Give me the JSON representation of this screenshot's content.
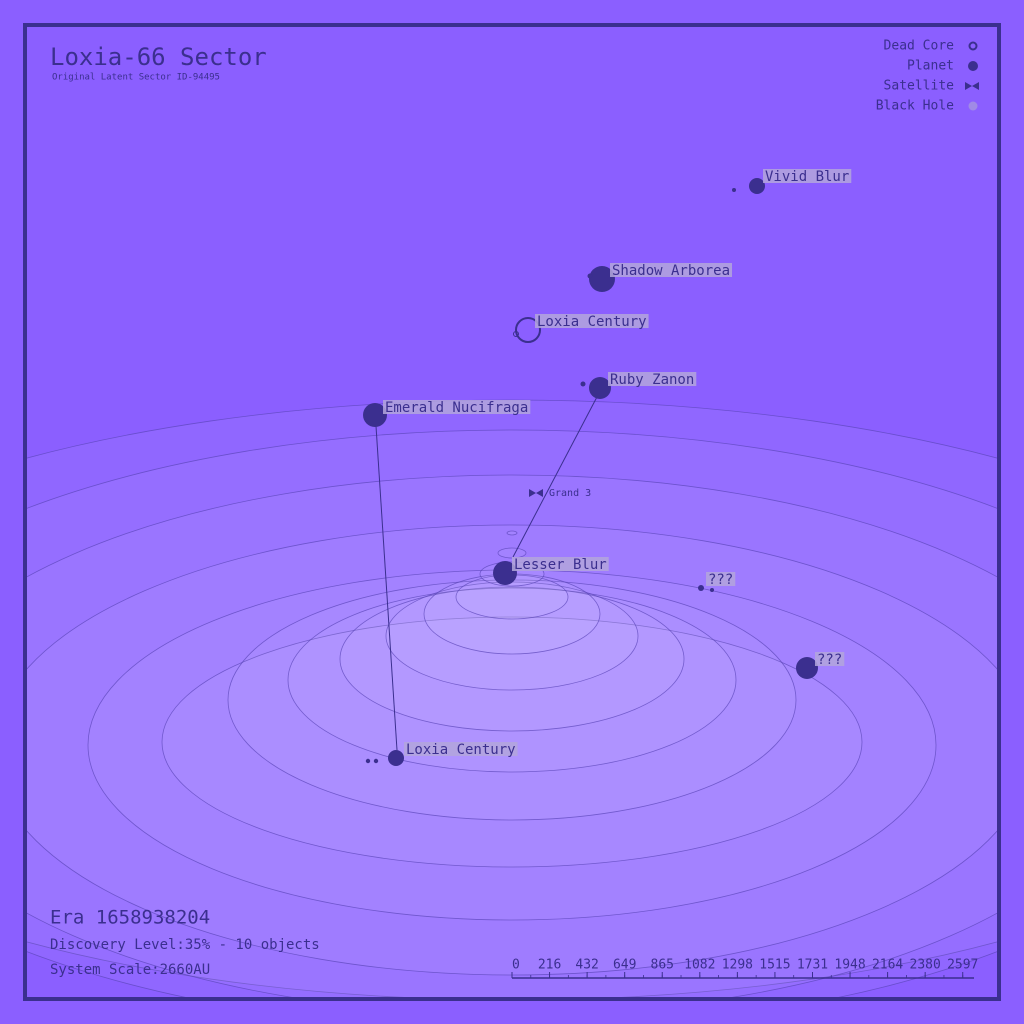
{
  "header": {
    "title": "Loxia-66 Sector",
    "subtitle": "Original Latent Sector ID-94495"
  },
  "legend": {
    "items": [
      {
        "label": "Dead Core"
      },
      {
        "label": "Planet"
      },
      {
        "label": "Satellite"
      },
      {
        "label": "Black Hole"
      }
    ]
  },
  "objects": [
    {
      "label": "Vivid Blur"
    },
    {
      "label": "Shadow Arborea"
    },
    {
      "label": "Loxia Century"
    },
    {
      "label": "Ruby Zanon"
    },
    {
      "label": "Emerald Nucifraga"
    },
    {
      "label": "Grand 3"
    },
    {
      "label": "Lesser Blur"
    },
    {
      "label": "???"
    },
    {
      "label": "???"
    },
    {
      "label": "Loxia Century"
    }
  ],
  "footer": {
    "era": "Era 1658938204",
    "discovery": "Discovery Level:35% - 10 objects",
    "scale": "System Scale:2660AU"
  },
  "scale_bar": {
    "ticks": [
      0,
      216,
      432,
      649,
      865,
      1082,
      1298,
      1515,
      1731,
      1948,
      2164,
      2380,
      2597
    ]
  }
}
